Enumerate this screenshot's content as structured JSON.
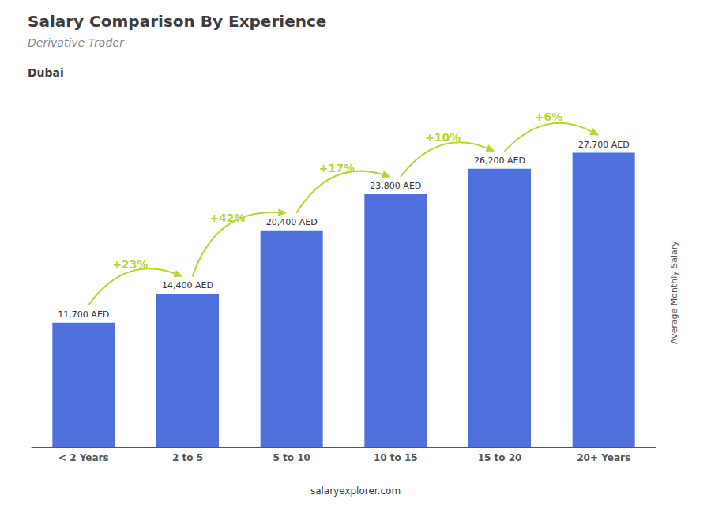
{
  "chart_data": {
    "type": "bar",
    "title": "Salary Comparison By Experience",
    "subtitle": "Derivative Trader",
    "location": "Dubai",
    "ylabel": "Average Monthly Salary",
    "watermark": "salaryexplorer.com",
    "categories": [
      "< 2 Years",
      "2 to 5",
      "5 to 10",
      "10 to 15",
      "15 to 20",
      "20+ Years"
    ],
    "values": [
      11700,
      14400,
      20400,
      23800,
      26200,
      27700
    ],
    "value_labels": [
      "11,700 AED",
      "14,400 AED",
      "20,400 AED",
      "23,800 AED",
      "26,200 AED",
      "27,700 AED"
    ],
    "data_labels": true,
    "pct_changes": [
      null,
      "+23%",
      "+42%",
      "+17%",
      "+10%",
      "+6%"
    ],
    "ylim": [
      0,
      29085
    ],
    "tick_labels": "x",
    "grid": false
  }
}
